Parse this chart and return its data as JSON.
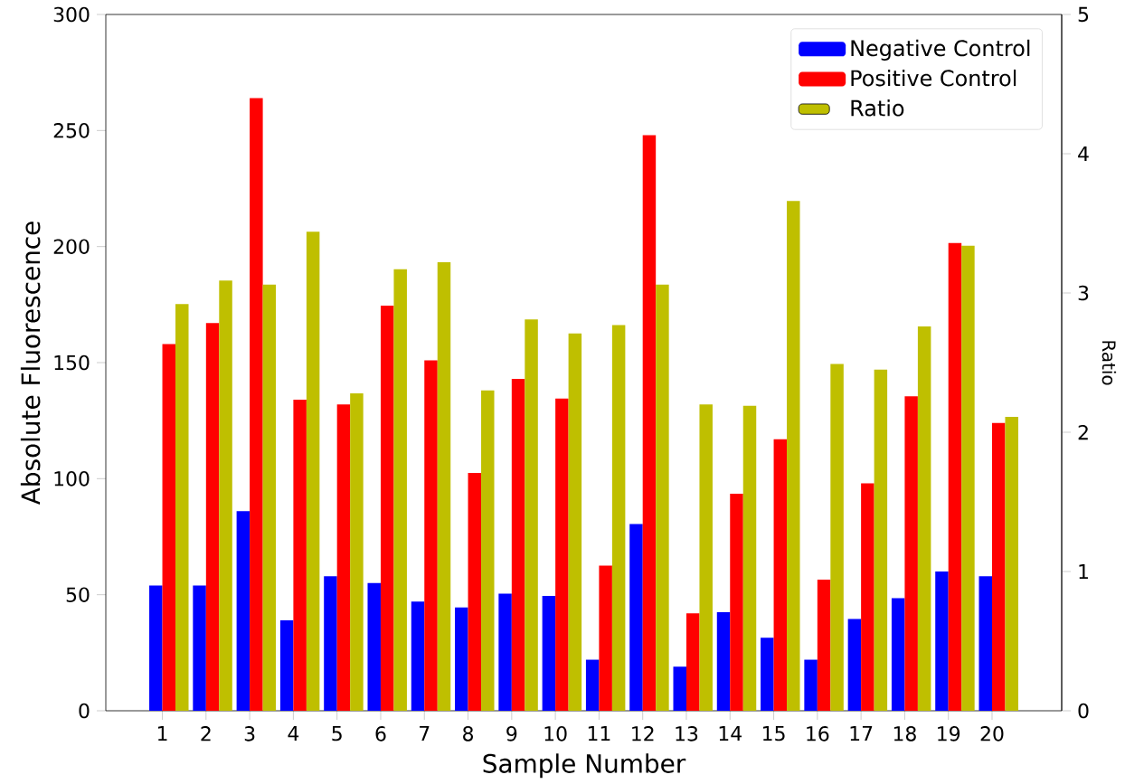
{
  "chart_data": {
    "type": "bar",
    "xlabel": "Sample Number",
    "ylabel": "Absolute Fluorescence",
    "y2label": "Ratio",
    "categories": [
      "1",
      "2",
      "3",
      "4",
      "5",
      "6",
      "7",
      "8",
      "9",
      "10",
      "11",
      "12",
      "13",
      "14",
      "15",
      "16",
      "17",
      "18",
      "19",
      "20"
    ],
    "series": [
      {
        "name": "Negative Control",
        "color": "#0000ff",
        "values": [
          54,
          54,
          86,
          39,
          58,
          55,
          47,
          44.5,
          50.5,
          49.5,
          22,
          80.5,
          19,
          42.5,
          31.5,
          22,
          39.5,
          48.5,
          60,
          58
        ]
      },
      {
        "name": "Positive Control",
        "color": "#ff0000",
        "values": [
          158,
          167,
          264,
          134,
          132,
          174.5,
          151,
          102.5,
          143,
          134.5,
          62.5,
          248,
          42,
          93.5,
          117,
          56.5,
          98,
          135.5,
          201.5,
          124
        ]
      },
      {
        "name": "Ratio",
        "color": "#bfbf00",
        "axis": "y2",
        "values": [
          2.92,
          3.09,
          3.06,
          3.44,
          2.28,
          3.17,
          3.22,
          2.3,
          2.81,
          2.71,
          2.77,
          3.06,
          2.2,
          2.19,
          3.66,
          2.49,
          2.45,
          2.76,
          3.34,
          2.11
        ]
      }
    ],
    "ylim": [
      0,
      300
    ],
    "yticks": [
      0,
      50,
      100,
      150,
      200,
      250,
      300
    ],
    "y2lim": [
      0,
      5
    ],
    "y2ticks": [
      0,
      1,
      2,
      3,
      4,
      5
    ],
    "legend": "top right"
  }
}
